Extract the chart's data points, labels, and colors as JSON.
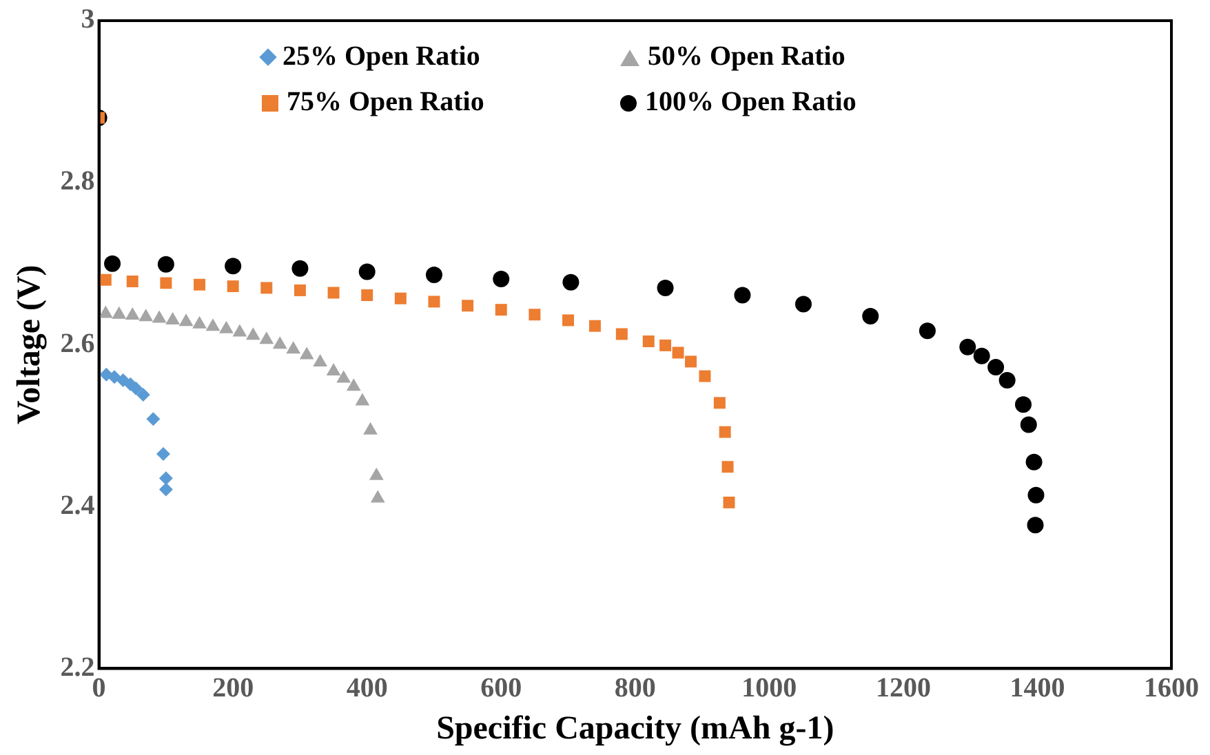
{
  "chart_data": {
    "type": "scatter",
    "xlabel": "Specific Capacity (mAh g-1)",
    "ylabel": "Voltage (V)",
    "xlim": [
      0,
      1600
    ],
    "xticks": [
      0,
      200,
      400,
      600,
      800,
      1000,
      1200,
      1400,
      1600
    ],
    "ylim": [
      2.2,
      3
    ],
    "yticks": [
      2.2,
      2.4,
      2.6,
      2.8,
      3
    ],
    "grid": false,
    "legend": "top",
    "series": [
      {
        "name": "25% Open Ratio",
        "color": "#5b9bd5",
        "marker": "diamond",
        "x": [
          11,
          23,
          36,
          47,
          55,
          66,
          81,
          96,
          100,
          100
        ],
        "values": [
          2.563,
          2.56,
          2.556,
          2.551,
          2.546,
          2.538,
          2.508,
          2.465,
          2.435,
          2.421
        ]
      },
      {
        "name": "50% Open Ratio",
        "color": "#a5a5a5",
        "marker": "triangle",
        "x": [
          10,
          30,
          50,
          70,
          90,
          110,
          130,
          150,
          170,
          190,
          210,
          230,
          250,
          270,
          290,
          310,
          330,
          350,
          365,
          380,
          393,
          405,
          414,
          416
        ],
        "values": [
          2.638,
          2.637,
          2.636,
          2.634,
          2.632,
          2.63,
          2.628,
          2.625,
          2.622,
          2.619,
          2.615,
          2.611,
          2.606,
          2.6,
          2.594,
          2.587,
          2.578,
          2.567,
          2.558,
          2.548,
          2.53,
          2.494,
          2.438,
          2.41
        ]
      },
      {
        "name": "75% Open Ratio",
        "color": "#ed7d31",
        "marker": "square",
        "x": [
          0,
          10,
          50,
          100,
          150,
          200,
          250,
          300,
          350,
          400,
          450,
          500,
          550,
          600,
          650,
          700,
          740,
          780,
          820,
          845,
          864,
          883,
          904,
          926,
          934,
          938,
          940
        ],
        "values": [
          2.88,
          2.68,
          2.678,
          2.676,
          2.674,
          2.672,
          2.67,
          2.667,
          2.664,
          2.661,
          2.657,
          2.653,
          2.648,
          2.643,
          2.637,
          2.63,
          2.623,
          2.613,
          2.604,
          2.599,
          2.59,
          2.579,
          2.561,
          2.528,
          2.492,
          2.449,
          2.405
        ]
      },
      {
        "name": "100% Open Ratio",
        "color": "#000000",
        "marker": "circle",
        "x": [
          0,
          20,
          100,
          200,
          300,
          400,
          500,
          600,
          704,
          845,
          960,
          1051,
          1151,
          1236,
          1296,
          1317,
          1338,
          1355,
          1379,
          1387,
          1395,
          1398,
          1397
        ],
        "values": [
          2.88,
          2.7,
          2.699,
          2.697,
          2.694,
          2.69,
          2.686,
          2.681,
          2.677,
          2.67,
          2.661,
          2.65,
          2.635,
          2.617,
          2.597,
          2.586,
          2.572,
          2.556,
          2.526,
          2.501,
          2.455,
          2.414,
          2.377
        ]
      }
    ]
  }
}
